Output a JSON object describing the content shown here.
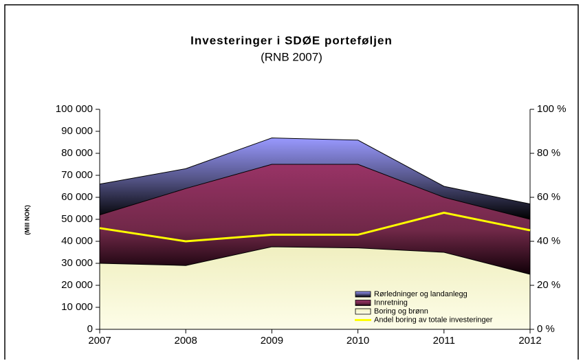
{
  "chart_data": {
    "type": "stacked_area",
    "title": "Investeringer i SDØE porteføljen",
    "subtitle": "(RNB 2007)",
    "y_label": "(Mill NOK)",
    "categories": [
      "2007",
      "2008",
      "2009",
      "2010",
      "2011",
      "2012"
    ],
    "series": [
      {
        "name": "Boring og brønn",
        "color": "#f0efc0",
        "values": [
          30000,
          29000,
          37500,
          37000,
          35000,
          25000
        ]
      },
      {
        "name": "Innretning",
        "color": "#993366",
        "values": [
          22000,
          35000,
          37500,
          38000,
          25000,
          25000
        ]
      },
      {
        "name": "Rørledninger og landanlegg",
        "color": "#9999ff",
        "values": [
          14000,
          9000,
          12000,
          11000,
          5000,
          7000
        ]
      },
      {
        "name": "Andel boring av totale investeringer",
        "color": "#ffff00",
        "axis": "y2",
        "line": true,
        "values": [
          46,
          40,
          43,
          43,
          53,
          45
        ]
      }
    ],
    "ylim": [
      0,
      100000
    ],
    "yticks": [
      {
        "value": 0,
        "label": "0"
      },
      {
        "value": 10000,
        "label": "10 000"
      },
      {
        "value": 20000,
        "label": "20 000"
      },
      {
        "value": 30000,
        "label": "30 000"
      },
      {
        "value": 40000,
        "label": "40 000"
      },
      {
        "value": 50000,
        "label": "50 000"
      },
      {
        "value": 60000,
        "label": "60 000"
      },
      {
        "value": 70000,
        "label": "70 000"
      },
      {
        "value": 80000,
        "label": "80 000"
      },
      {
        "value": 90000,
        "label": "90 000"
      },
      {
        "value": 100000,
        "label": "100 000"
      }
    ],
    "y2lim": [
      0,
      100
    ],
    "y2ticks": [
      {
        "value": 0,
        "label": "0 %"
      },
      {
        "value": 20,
        "label": "20 %"
      },
      {
        "value": 40,
        "label": "40 %"
      },
      {
        "value": 60,
        "label": "60 %"
      },
      {
        "value": 80,
        "label": "80 %"
      },
      {
        "value": 100,
        "label": "100 %"
      }
    ],
    "legend": "lower right"
  }
}
